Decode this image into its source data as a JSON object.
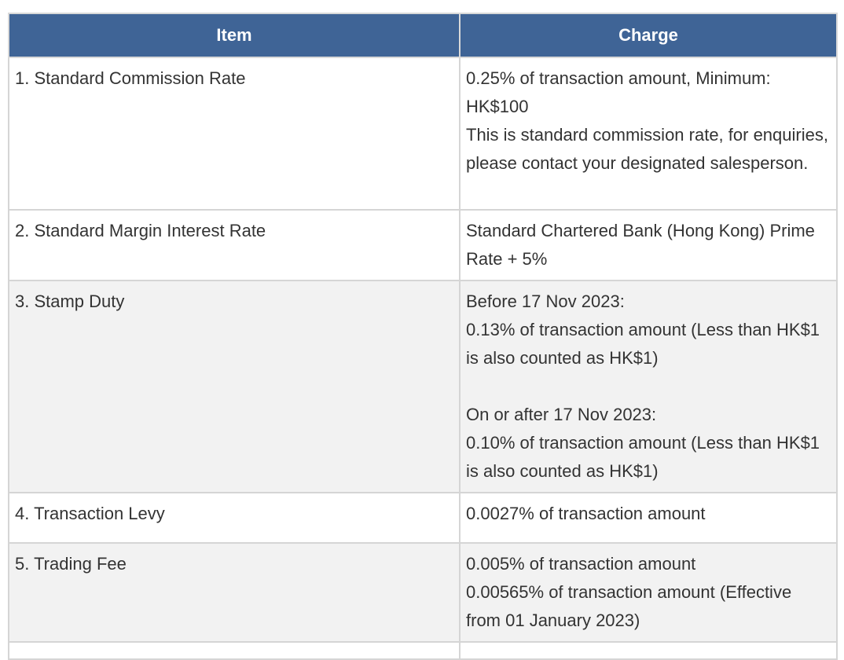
{
  "table": {
    "headers": {
      "item": "Item",
      "charge": "Charge"
    },
    "rows": [
      {
        "item": "1. Standard Commission Rate",
        "charge": [
          "0.25% of transaction amount, Minimum: HK$100",
          "This is standard commission rate, for enquiries, please contact your designated salesperson."
        ]
      },
      {
        "item": "2. Standard Margin Interest Rate",
        "charge": [
          "Standard Chartered Bank (Hong Kong) Prime Rate + 5%"
        ]
      },
      {
        "item": "3. Stamp Duty",
        "charge": [
          "Before 17 Nov 2023:",
          "0.13% of transaction amount (Less than HK$1 is also counted as HK$1)",
          "On or after 17 Nov 2023:",
          "0.10% of transaction amount (Less than HK$1 is also counted as HK$1)"
        ]
      },
      {
        "item": "4. Transaction Levy",
        "charge": [
          "0.0027% of transaction amount"
        ]
      },
      {
        "item": "5. Trading Fee",
        "charge": [
          "0.005% of transaction amount",
          "0.00565% of transaction amount (Effective from 01 January 2023)"
        ]
      }
    ]
  },
  "colors": {
    "header_bg": "#3f6496",
    "header_text": "#ffffff",
    "shaded_row_bg": "#f2f2f2",
    "border": "#d5d5d5",
    "body_text": "#333333"
  }
}
